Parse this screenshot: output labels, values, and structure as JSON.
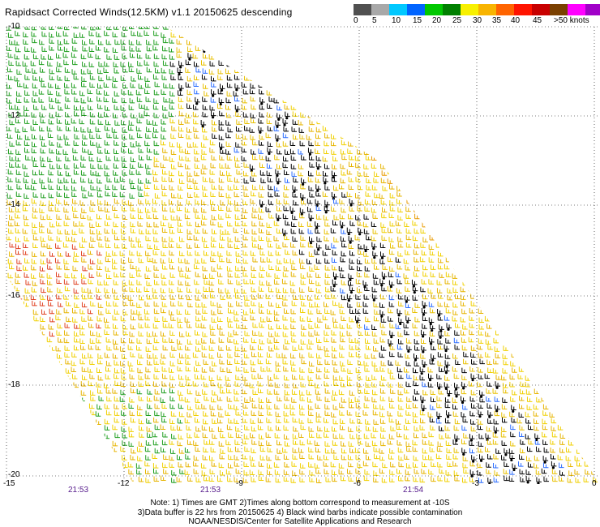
{
  "title": "Rapidsact Corrected Winds(12.5KM) v1.1 20150625 descending",
  "scale": {
    "colors": [
      "#505050",
      "#a8a8a8",
      "#00c8ff",
      "#0064ff",
      "#00c800",
      "#008000",
      "#f8f000",
      "#f8b400",
      "#ff6400",
      "#ff1400",
      "#c80000",
      "#7a4000",
      "#ff00ff",
      "#a000c8",
      "#3c0064"
    ],
    "labels": [
      "0",
      "5",
      "10",
      "15",
      "20",
      "25",
      "30",
      "35",
      "40",
      "45",
      ">50 knots"
    ]
  },
  "map": {
    "lat_ticks": [
      "-10",
      "-12",
      "-14",
      "-16",
      "-18",
      "-20"
    ],
    "lon_ticks": [
      "-15",
      "-12",
      "-9",
      "-6",
      "-3",
      "0"
    ],
    "time_labels": [
      "21:53",
      "21:53",
      "21:54"
    ],
    "grid": true,
    "swath_color_regions": [
      "green",
      "yellow",
      "black",
      "orange",
      "red",
      "blue"
    ]
  },
  "notes": [
    "Note: 1) Times are GMT 2)Times along bottom correspond to measurement at -10S",
    "3)Data buffer is 22 hrs from 20150625 4) Black wind barbs indicate possible contamination",
    "NOAA/NESDIS/Center for Satellite Applications and Research"
  ]
}
